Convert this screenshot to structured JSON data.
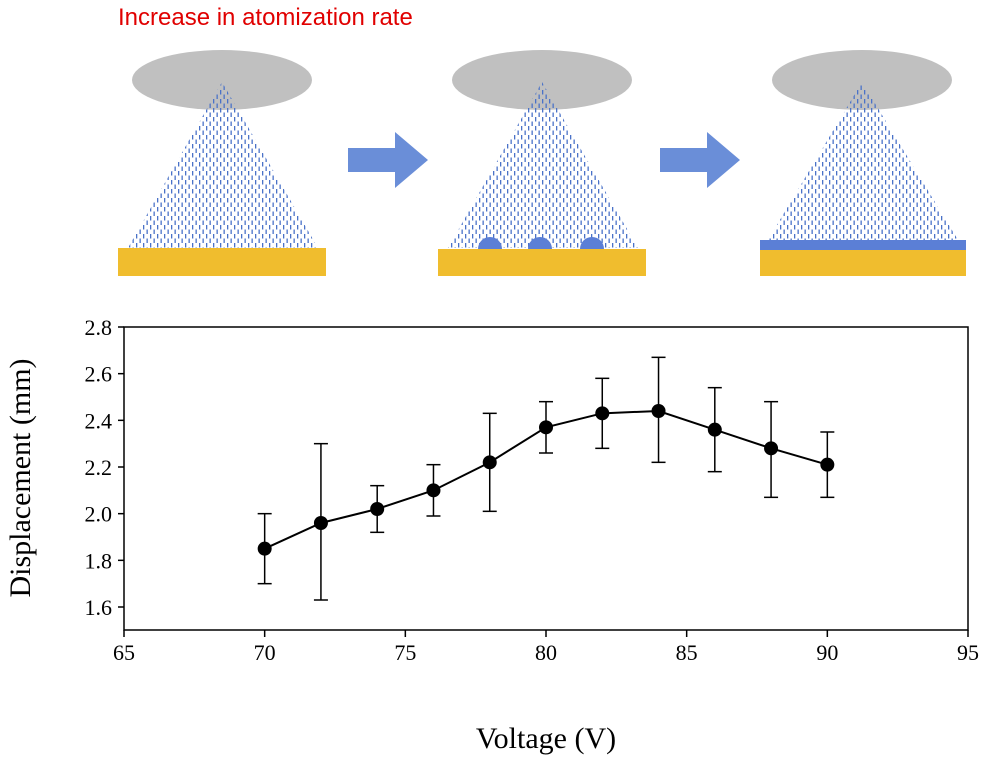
{
  "diagram": {
    "title": "Increase in atomization rate",
    "colors": {
      "title": "#e00000",
      "nozzle": "#c0c0c0",
      "spray": "#4a72c8",
      "arrow": "#6a8ed8",
      "substrate": "#f0bd2e",
      "film": "#5b7fd6"
    },
    "stages": [
      "dry-spray",
      "droplets-on-substrate",
      "continuous-film"
    ]
  },
  "chart_data": {
    "type": "line",
    "title": "",
    "xlabel": "Voltage (V)",
    "ylabel": "Displacement (mm)",
    "xlim": [
      65,
      95
    ],
    "ylim": [
      1.5,
      2.8
    ],
    "xticks": [
      65,
      70,
      75,
      80,
      85,
      90,
      95
    ],
    "yticks": [
      "1.6",
      "1.8",
      "2.0",
      "2.2",
      "2.4",
      "2.6",
      "2.8"
    ],
    "grid": false,
    "series": [
      {
        "name": "Displacement",
        "x": [
          70,
          72,
          74,
          76,
          78,
          80,
          82,
          84,
          86,
          88,
          90
        ],
        "y": [
          1.85,
          1.96,
          2.02,
          2.1,
          2.22,
          2.37,
          2.43,
          2.44,
          2.36,
          2.28,
          2.21
        ],
        "err_upper": [
          2.0,
          2.3,
          2.12,
          2.21,
          2.43,
          2.48,
          2.58,
          2.67,
          2.54,
          2.48,
          2.35
        ],
        "err_lower": [
          1.7,
          1.63,
          1.92,
          1.99,
          2.01,
          2.26,
          2.28,
          2.22,
          2.18,
          2.07,
          2.07
        ]
      }
    ]
  }
}
